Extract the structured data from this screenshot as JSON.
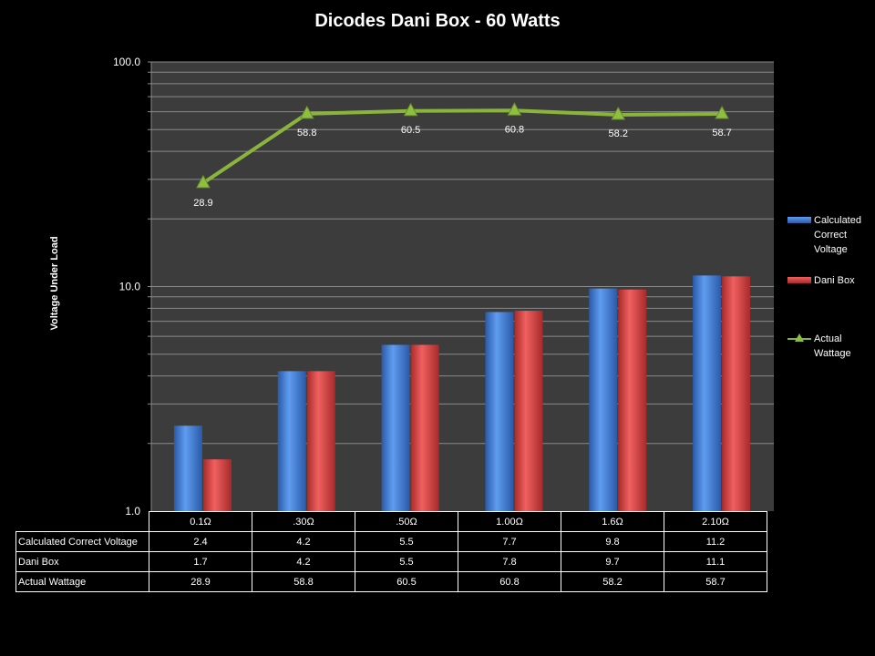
{
  "chart_data": {
    "type": "bar",
    "title": "Dicodes Dani Box - 60 Watts",
    "ylabel": "Voltage Under Load",
    "xlabel": "",
    "yscale": "log",
    "ylim": [
      1,
      100
    ],
    "yticks": [
      "1.0",
      "10.0",
      "100.0"
    ],
    "categories": [
      "0.1Ω",
      ".30Ω",
      ".50Ω",
      "1.00Ω",
      "1.6Ω",
      "2.10Ω"
    ],
    "series": [
      {
        "name": "Calculated Correct Voltage",
        "legend": [
          "Calculated",
          "Correct",
          "Voltage"
        ],
        "type": "bar",
        "color": "#3a78d0",
        "values": [
          2.4,
          4.2,
          5.5,
          7.7,
          9.8,
          11.2
        ],
        "labels": [
          "2.4",
          "4.2",
          "5.5",
          "7.7",
          "9.8",
          "11.2"
        ]
      },
      {
        "name": "Dani Box",
        "legend": [
          "Dani Box"
        ],
        "type": "bar",
        "color": "#d03a3a",
        "values": [
          1.7,
          4.2,
          5.5,
          7.8,
          9.7,
          11.1
        ],
        "labels": [
          "1.7",
          "4.2",
          "5.5",
          "7.8",
          "9.7",
          "11.1"
        ]
      },
      {
        "name": "Actual Wattage",
        "legend": [
          "Actual",
          "Wattage"
        ],
        "type": "line",
        "color": "#8ab43c",
        "values": [
          28.9,
          58.8,
          60.5,
          60.8,
          58.2,
          58.7
        ],
        "labels": [
          "28.9",
          "58.8",
          "60.5",
          "60.8",
          "58.2",
          "58.7"
        ]
      }
    ],
    "grid": true,
    "legend_position": "right",
    "data_table": true
  }
}
